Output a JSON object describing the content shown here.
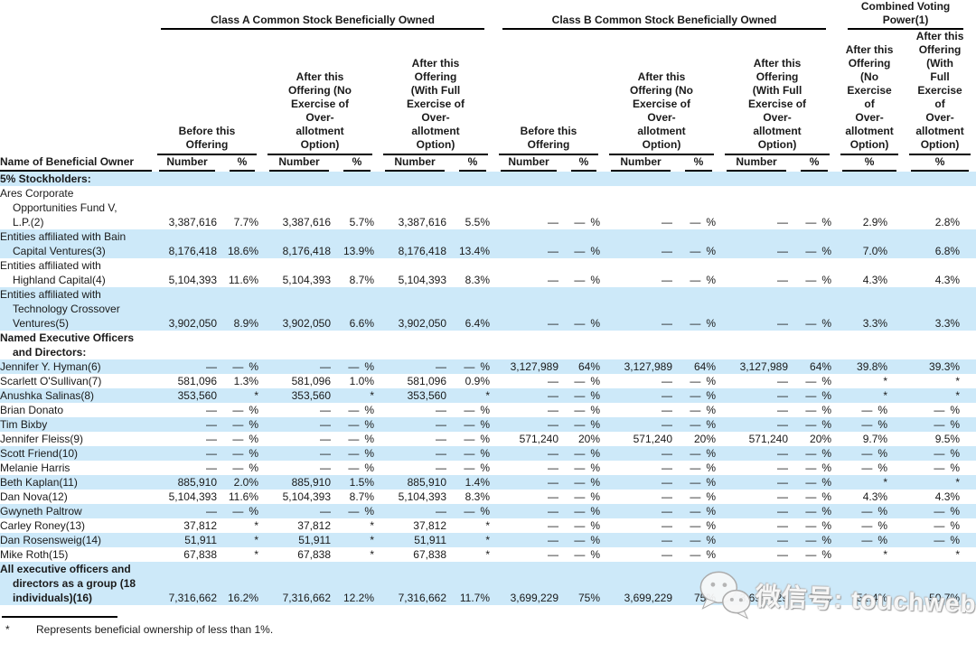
{
  "table": {
    "groups": [
      {
        "label": "Class A Common Stock Beneficially Owned"
      },
      {
        "label": "Class B Common Stock Beneficially Owned"
      },
      {
        "label": "Combined Voting Power(1)"
      }
    ],
    "subheaders": {
      "before": [
        "Before this",
        "Offering"
      ],
      "after_no": [
        "After this",
        "Offering (No",
        "Exercise of",
        "Over-",
        "allotment",
        "Option)"
      ],
      "after_full": [
        "After this",
        "Offering",
        "(With Full",
        "Exercise of",
        "Over-",
        "allotment",
        "Option)"
      ],
      "cv_after_no": [
        "After this",
        "Offering",
        "(No",
        "Exercise",
        "of",
        "Over-",
        "allotment",
        "Option)"
      ],
      "cv_after_full": [
        "After this",
        "Offering",
        "(With",
        "Full",
        "Exercise",
        "of",
        "Over-",
        "allotment",
        "Option)"
      ]
    },
    "col_headers": {
      "name": "Name of Beneficial Owner",
      "number": "Number",
      "percent": "%"
    },
    "rows": [
      {
        "name": [
          "5% Stockholders:"
        ],
        "bold": true,
        "shaded": true,
        "cells": [
          "",
          "",
          "",
          "",
          "",
          "",
          "",
          "",
          "",
          "",
          "",
          "",
          "",
          ""
        ]
      },
      {
        "name": [
          "Ares Corporate",
          "Opportunities Fund V,",
          "L.P.(2)"
        ],
        "bold": false,
        "shaded": false,
        "cells": [
          "3,387,616",
          "7.7%",
          "3,387,616",
          "5.7%",
          "3,387,616",
          "5.5%",
          "—",
          "— %",
          "—",
          "— %",
          "—",
          "— %",
          "2.9%",
          "2.8%"
        ]
      },
      {
        "name": [
          "Entities affiliated with Bain",
          "Capital Ventures(3)"
        ],
        "bold": false,
        "shaded": true,
        "cells": [
          "8,176,418",
          "18.6%",
          "8,176,418",
          "13.9%",
          "8,176,418",
          "13.4%",
          "—",
          "— %",
          "—",
          "— %",
          "—",
          "— %",
          "7.0%",
          "6.8%"
        ]
      },
      {
        "name": [
          "Entities affiliated with",
          "Highland Capital(4)"
        ],
        "bold": false,
        "shaded": false,
        "cells": [
          "5,104,393",
          "11.6%",
          "5,104,393",
          "8.7%",
          "5,104,393",
          "8.3%",
          "—",
          "— %",
          "—",
          "— %",
          "—",
          "— %",
          "4.3%",
          "4.3%"
        ]
      },
      {
        "name": [
          "Entities affiliated with",
          "Technology Crossover",
          "Ventures(5)"
        ],
        "bold": false,
        "shaded": true,
        "cells": [
          "3,902,050",
          "8.9%",
          "3,902,050",
          "6.6%",
          "3,902,050",
          "6.4%",
          "—",
          "— %",
          "—",
          "— %",
          "—",
          "— %",
          "3.3%",
          "3.3%"
        ]
      },
      {
        "name": [
          "Named Executive Officers",
          "and Directors:"
        ],
        "bold": true,
        "shaded": false,
        "cells": [
          "",
          "",
          "",
          "",
          "",
          "",
          "",
          "",
          "",
          "",
          "",
          "",
          "",
          ""
        ]
      },
      {
        "name": [
          "Jennifer Y. Hyman(6)"
        ],
        "bold": false,
        "shaded": true,
        "cells": [
          "—",
          "— %",
          "—",
          "— %",
          "—",
          "— %",
          "3,127,989",
          "64%",
          "3,127,989",
          "64%",
          "3,127,989",
          "64%",
          "39.8%",
          "39.3%"
        ]
      },
      {
        "name": [
          "Scarlett O'Sullivan(7)"
        ],
        "bold": false,
        "shaded": false,
        "cells": [
          "581,096",
          "1.3%",
          "581,096",
          "1.0%",
          "581,096",
          "0.9%",
          "—",
          "— %",
          "—",
          "— %",
          "—",
          "— %",
          "*",
          "*"
        ]
      },
      {
        "name": [
          "Anushka Salinas(8)"
        ],
        "bold": false,
        "shaded": true,
        "cells": [
          "353,560",
          "*",
          "353,560",
          "*",
          "353,560",
          "*",
          "—",
          "— %",
          "—",
          "— %",
          "—",
          "— %",
          "*",
          "*"
        ]
      },
      {
        "name": [
          "Brian Donato"
        ],
        "bold": false,
        "shaded": false,
        "cells": [
          "—",
          "— %",
          "—",
          "— %",
          "—",
          "— %",
          "—",
          "— %",
          "—",
          "— %",
          "—",
          "— %",
          "— %",
          "— %"
        ]
      },
      {
        "name": [
          "Tim Bixby"
        ],
        "bold": false,
        "shaded": true,
        "cells": [
          "—",
          "— %",
          "—",
          "— %",
          "—",
          "— %",
          "—",
          "— %",
          "—",
          "— %",
          "—",
          "— %",
          "— %",
          "— %"
        ]
      },
      {
        "name": [
          "Jennifer Fleiss(9)"
        ],
        "bold": false,
        "shaded": false,
        "cells": [
          "—",
          "— %",
          "—",
          "— %",
          "—",
          "— %",
          "571,240",
          "20%",
          "571,240",
          "20%",
          "571,240",
          "20%",
          "9.7%",
          "9.5%"
        ]
      },
      {
        "name": [
          "Scott Friend(10)"
        ],
        "bold": false,
        "shaded": true,
        "cells": [
          "—",
          "— %",
          "—",
          "— %",
          "—",
          "— %",
          "—",
          "— %",
          "—",
          "— %",
          "—",
          "— %",
          "— %",
          "— %"
        ]
      },
      {
        "name": [
          "Melanie Harris"
        ],
        "bold": false,
        "shaded": false,
        "cells": [
          "—",
          "— %",
          "—",
          "— %",
          "—",
          "— %",
          "—",
          "— %",
          "—",
          "— %",
          "—",
          "— %",
          "— %",
          "— %"
        ]
      },
      {
        "name": [
          "Beth Kaplan(11)"
        ],
        "bold": false,
        "shaded": true,
        "cells": [
          "885,910",
          "2.0%",
          "885,910",
          "1.5%",
          "885,910",
          "1.4%",
          "—",
          "— %",
          "—",
          "— %",
          "—",
          "— %",
          "*",
          "*"
        ]
      },
      {
        "name": [
          "Dan Nova(12)"
        ],
        "bold": false,
        "shaded": false,
        "cells": [
          "5,104,393",
          "11.6%",
          "5,104,393",
          "8.7%",
          "5,104,393",
          "8.3%",
          "—",
          "— %",
          "—",
          "— %",
          "—",
          "— %",
          "4.3%",
          "4.3%"
        ]
      },
      {
        "name": [
          "Gwyneth Paltrow"
        ],
        "bold": false,
        "shaded": true,
        "cells": [
          "—",
          "— %",
          "—",
          "— %",
          "—",
          "— %",
          "—",
          "— %",
          "—",
          "— %",
          "—",
          "— %",
          "— %",
          "— %"
        ]
      },
      {
        "name": [
          "Carley Roney(13)"
        ],
        "bold": false,
        "shaded": false,
        "cells": [
          "37,812",
          "*",
          "37,812",
          "*",
          "37,812",
          "*",
          "—",
          "— %",
          "—",
          "— %",
          "—",
          "— %",
          "— %",
          "— %"
        ]
      },
      {
        "name": [
          "Dan Rosensweig(14)"
        ],
        "bold": false,
        "shaded": true,
        "cells": [
          "51,911",
          "*",
          "51,911",
          "*",
          "51,911",
          "*",
          "—",
          "— %",
          "—",
          "— %",
          "—",
          "— %",
          "— %",
          "— %"
        ]
      },
      {
        "name": [
          "Mike Roth(15)"
        ],
        "bold": false,
        "shaded": false,
        "cells": [
          "67,838",
          "*",
          "67,838",
          "*",
          "67,838",
          "*",
          "—",
          "— %",
          "—",
          "— %",
          "—",
          "— %",
          "*",
          "*"
        ]
      },
      {
        "name": [
          "All executive officers and",
          "directors as a group (18",
          "individuals)(16)"
        ],
        "bold": true,
        "shaded": true,
        "cells": [
          "7,316,662",
          "16.2%",
          "7,316,662",
          "12.2%",
          "7,316,662",
          "11.7%",
          "3,699,229",
          "75%",
          "3,699,229",
          "75%",
          "3,699,229",
          "75%",
          "51.4%",
          "50.7%"
        ]
      }
    ]
  },
  "footnote": {
    "marker": "*",
    "text": "Represents beneficial ownership of less than 1%."
  },
  "watermark": {
    "text": "微信号: touchweb"
  },
  "colors": {
    "stripe": "#cde9f9",
    "text": "#1a1a1a"
  }
}
